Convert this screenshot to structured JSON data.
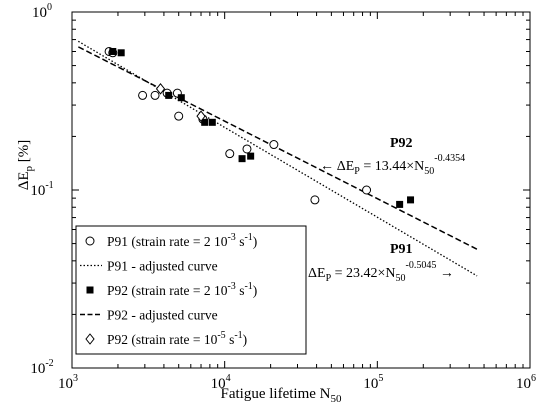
{
  "chart_data": {
    "type": "scatter",
    "xlabel": "Fatigue lifetime N",
    "xlabel_sub": "50",
    "ylabel": "ΔE",
    "ylabel_sub": "p",
    "ylabel_unit": "[%]",
    "xscale": "log",
    "yscale": "log",
    "xlim": [
      1000,
      1000000
    ],
    "ylim": [
      0.01,
      1
    ],
    "xticks": [
      {
        "value": 1000,
        "base": "10",
        "exp": "3"
      },
      {
        "value": 10000,
        "base": "10",
        "exp": "4"
      },
      {
        "value": 100000,
        "base": "10",
        "exp": "5"
      },
      {
        "value": 1000000,
        "base": "10",
        "exp": "6"
      }
    ],
    "yticks": [
      {
        "value": 0.01,
        "base": "10",
        "exp": "-2"
      },
      {
        "value": 0.1,
        "base": "10",
        "exp": "-1"
      },
      {
        "value": 1,
        "base": "10",
        "exp": "0"
      }
    ],
    "legend_position": "bottom-left",
    "series": [
      {
        "name": "P91 (strain rate = 2 10-3 s-1)",
        "marker": "open-circle",
        "points": [
          {
            "x": 1750,
            "y": 0.6
          },
          {
            "x": 1850,
            "y": 0.59
          },
          {
            "x": 2900,
            "y": 0.34
          },
          {
            "x": 3500,
            "y": 0.34
          },
          {
            "x": 4200,
            "y": 0.35
          },
          {
            "x": 4900,
            "y": 0.35
          },
          {
            "x": 5000,
            "y": 0.26
          },
          {
            "x": 7200,
            "y": 0.25
          },
          {
            "x": 10800,
            "y": 0.16
          },
          {
            "x": 14000,
            "y": 0.17
          },
          {
            "x": 21000,
            "y": 0.18
          },
          {
            "x": 39000,
            "y": 0.088
          },
          {
            "x": 85000,
            "y": 0.1
          }
        ]
      },
      {
        "name": "P91 - adjusted curve",
        "line": "dotted",
        "equation": {
          "a": 23.42,
          "b": -0.5045
        },
        "x_range": [
          1100,
          450000
        ]
      },
      {
        "name": "P92 (strain rate = 2 10-3 s-1)",
        "marker": "filled-square",
        "points": [
          {
            "x": 1850,
            "y": 0.6
          },
          {
            "x": 2100,
            "y": 0.59
          },
          {
            "x": 4300,
            "y": 0.34
          },
          {
            "x": 5200,
            "y": 0.33
          },
          {
            "x": 7400,
            "y": 0.24
          },
          {
            "x": 8300,
            "y": 0.24
          },
          {
            "x": 13000,
            "y": 0.15
          },
          {
            "x": 14800,
            "y": 0.155
          },
          {
            "x": 140000,
            "y": 0.083
          },
          {
            "x": 165000,
            "y": 0.088
          }
        ]
      },
      {
        "name": "P92 - adjusted curve",
        "line": "dashed",
        "equation": {
          "a": 13.44,
          "b": -0.4354
        },
        "x_range": [
          1100,
          450000
        ]
      },
      {
        "name": "P92 (strain rate = 10-5 s-1)",
        "marker": "open-diamond",
        "points": [
          {
            "x": 3800,
            "y": 0.37
          },
          {
            "x": 7000,
            "y": 0.26
          }
        ]
      }
    ],
    "legend": [
      {
        "label": "P91 (strain rate = 2 10",
        "sup": "-3",
        "mid": " s",
        "sup2": "-1",
        "end": ")",
        "marker": "open-circle"
      },
      {
        "label": "P91 - adjusted curve",
        "marker": "dotted"
      },
      {
        "label": "P92 (strain rate = 2 10",
        "sup": "-3",
        "mid": " s",
        "sup2": "-1",
        "end": ")",
        "marker": "filled-square"
      },
      {
        "label": "P92 - adjusted curve",
        "marker": "dashed"
      },
      {
        "label": "P92 (strain rate = 10",
        "sup": "-5",
        "mid": " s",
        "sup2": "-1",
        "end": ")",
        "marker": "open-diamond"
      }
    ],
    "annotations": {
      "p92": {
        "name": "P92",
        "lhs": "ΔE",
        "lhs_sub": "P",
        "eq": " = 13.44×N",
        "n_sub": "50",
        "exp": "-0.4354",
        "arrow": "←"
      },
      "p91": {
        "name": "P91",
        "lhs": "ΔE",
        "lhs_sub": "P",
        "eq": " = 23.42×N",
        "n_sub": "50",
        "exp": "-0.5045",
        "arrow": "→"
      }
    }
  }
}
